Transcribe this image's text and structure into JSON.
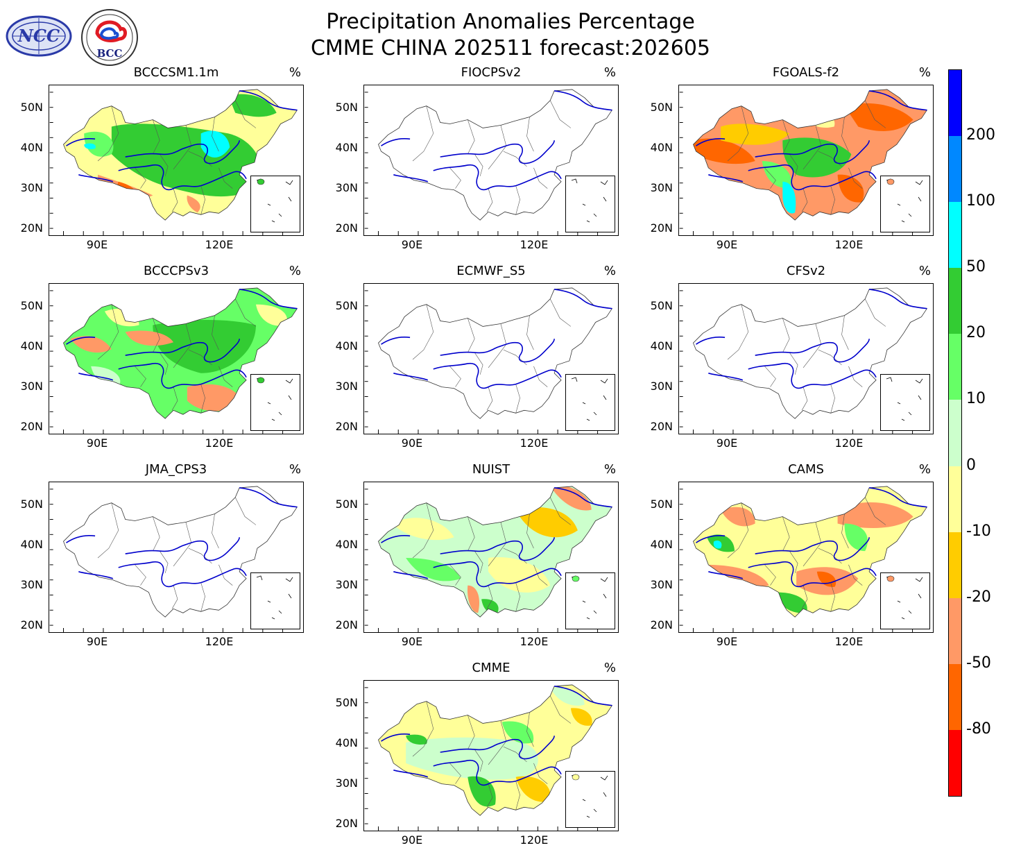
{
  "figure": {
    "title_line1": "Precipitation Anomalies Percentage",
    "title_line2": "CMME CHINA 202511 forecast:202605",
    "logos": [
      {
        "name": "ncc-logo",
        "text": "NCC"
      },
      {
        "name": "bcc-logo",
        "text": "BCC"
      }
    ]
  },
  "axes": {
    "lat_labels": [
      "50N",
      "40N",
      "30N",
      "20N"
    ],
    "lon_labels": [
      "90E",
      "120E"
    ]
  },
  "panels": [
    {
      "model": "BCCCSM1.1m",
      "unit": "%",
      "has_data": true,
      "dominant": [
        "green",
        "yellow",
        "orange",
        "cyan"
      ]
    },
    {
      "model": "FIOCPSv2",
      "unit": "%",
      "has_data": false
    },
    {
      "model": "FGOALS-f2",
      "unit": "%",
      "has_data": true,
      "dominant": [
        "orange",
        "darkorange",
        "green",
        "cyan"
      ]
    },
    {
      "model": "BCCCPSv3",
      "unit": "%",
      "has_data": true,
      "dominant": [
        "green",
        "orange",
        "lightgreen",
        "yellow"
      ]
    },
    {
      "model": "ECMWF_S5",
      "unit": "%",
      "has_data": false
    },
    {
      "model": "CFSv2",
      "unit": "%",
      "has_data": false
    },
    {
      "model": "JMA_CPS3",
      "unit": "%",
      "has_data": false
    },
    {
      "model": "NUIST",
      "unit": "%",
      "has_data": true,
      "dominant": [
        "lightgreen",
        "yellow",
        "orange",
        "green"
      ]
    },
    {
      "model": "CAMS",
      "unit": "%",
      "has_data": true,
      "dominant": [
        "orange",
        "yellow",
        "green",
        "darkorange"
      ]
    },
    {
      "model": "CMME",
      "unit": "%",
      "has_data": true,
      "dominant": [
        "yellow",
        "lightgreen",
        "green",
        "orange"
      ]
    }
  ],
  "colorbar": {
    "labels": [
      "200",
      "100",
      "50",
      "20",
      "10",
      "0",
      "-10",
      "-20",
      "-50",
      "-80"
    ],
    "colors": [
      "#0000ff",
      "#0088ff",
      "#00ffff",
      "#33cc33",
      "#66ff66",
      "#ccffcc",
      "#ffff99",
      "#ffcc00",
      "#ff9966",
      "#ff6600",
      "#ff0000"
    ]
  },
  "palette": {
    "green": "#33cc33",
    "lightgreen": "#66ff66",
    "palegreen": "#ccffcc",
    "yellow": "#ffff99",
    "gold": "#ffcc00",
    "orange": "#ff9966",
    "darkorange": "#ff6600",
    "red": "#ff0000",
    "cyan": "#00ffff",
    "river": "#0000cc",
    "border": "#555555"
  }
}
